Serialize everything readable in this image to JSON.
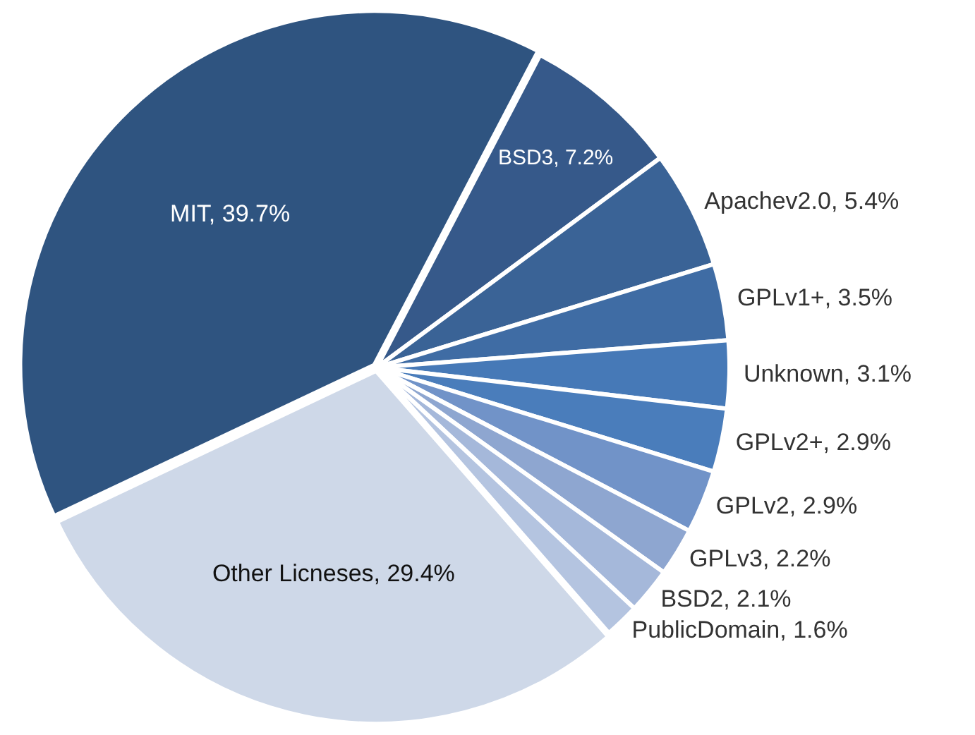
{
  "chart_data": {
    "type": "pie",
    "categories": [
      "BSD3",
      "Apachev2.0",
      "GPLv1+",
      "Unknown",
      "GPLv2+",
      "GPLv2",
      "GPLv3",
      "BSD2",
      "PublicDomain",
      "Other Licneses",
      "MIT"
    ],
    "values": [
      7.2,
      5.4,
      3.5,
      3.1,
      2.9,
      2.9,
      2.2,
      2.1,
      1.6,
      29.4,
      39.7
    ],
    "value_labels": [
      "7.2%",
      "5.4%",
      "3.5%",
      "3.1%",
      "2.9%",
      "2.9%",
      "2.2%",
      "2.1%",
      "1.6%",
      "29.4%",
      "39.7%"
    ],
    "colors": [
      "#36598a",
      "#3a6396",
      "#3f6ca4",
      "#4679b7",
      "#4a7dbb",
      "#7193c8",
      "#8ea6d0",
      "#a5b8da",
      "#b4c4e0",
      "#ced8e8",
      "#2f5480"
    ],
    "data_labels": true,
    "legend": false
  }
}
